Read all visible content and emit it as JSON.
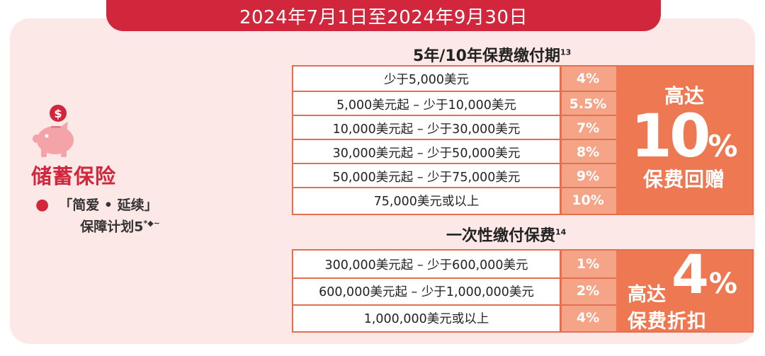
{
  "banner": "2024年7月1日至2024年9月30日",
  "product": {
    "title": "储蓄保险",
    "plan_line1": "「简爱 • 延续」",
    "plan_line2": "保障计划5",
    "plan_sup": "*◆~"
  },
  "section1": {
    "title": "5年/10年保费缴付期",
    "sup": "13",
    "rows": [
      {
        "tier": "少于5,000美元",
        "rate": "4%"
      },
      {
        "tier": "5,000美元起 – 少于10,000美元",
        "rate": "5.5%"
      },
      {
        "tier": "10,000美元起 – 少于30,000美元",
        "rate": "7%"
      },
      {
        "tier": "30,000美元起 – 少于50,000美元",
        "rate": "8%"
      },
      {
        "tier": "50,000美元起 – 少于75,000美元",
        "rate": "9%"
      },
      {
        "tier": "75,000美元或以上",
        "rate": "10%"
      }
    ],
    "promo_top": "高达",
    "promo_number": "10",
    "promo_pct": "%",
    "promo_bottom": "保费回赠"
  },
  "section2": {
    "title": "一次性缴付保费",
    "sup": "14",
    "rows": [
      {
        "tier": "300,000美元起 – 少于600,000美元",
        "rate": "1%"
      },
      {
        "tier": "600,000美元起 – 少于1,000,000美元",
        "rate": "2%"
      },
      {
        "tier": "1,000,000美元或以上",
        "rate": "4%"
      }
    ],
    "promo_top": "高达",
    "promo_number": "4",
    "promo_pct": "%",
    "promo_bottom": "保费折扣"
  },
  "colors": {
    "brand_red": "#d1263c",
    "orange": "#ee7852",
    "light_orange": "#f6a487",
    "panel_pink": "#fde8e8",
    "pig_pink": "#f4a3a8"
  },
  "icons": {
    "product_icon": "piggy-bank-dollar-icon",
    "bullet": "bullet-dot"
  }
}
